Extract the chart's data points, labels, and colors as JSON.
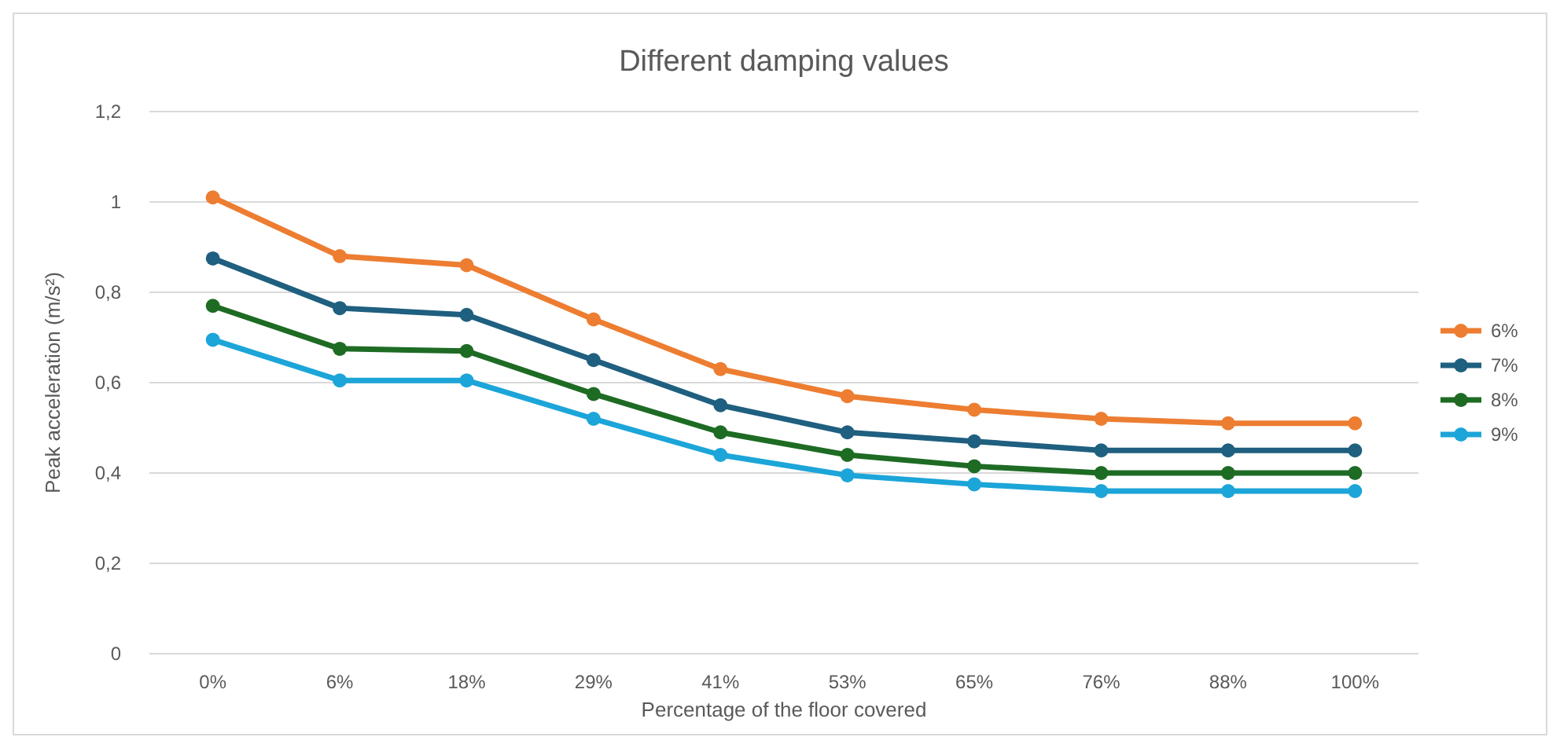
{
  "chart_data": {
    "type": "line",
    "title": "Different damping values",
    "xlabel": "Percentage of the floor covered",
    "ylabel": "Peak acceleration (m/s²)",
    "categories": [
      "0%",
      "6%",
      "18%",
      "29%",
      "41%",
      "53%",
      "65%",
      "76%",
      "88%",
      "100%"
    ],
    "ylim": [
      0,
      1.2
    ],
    "yticks": [
      0,
      {
        "value": 0.2,
        "label": "0,2"
      },
      {
        "value": 0.4,
        "label": "0,4"
      },
      {
        "value": 0.6,
        "label": "0,6"
      },
      {
        "value": 0.8,
        "label": "0,8"
      },
      1,
      {
        "value": 1.2,
        "label": "1,2"
      }
    ],
    "grid": "y",
    "legend": "right",
    "marker": "circle",
    "line_style": "solid",
    "series": [
      {
        "name": "6%",
        "color": "#ed7d31",
        "values": [
          1.01,
          0.88,
          0.86,
          0.74,
          0.63,
          0.57,
          0.54,
          0.52,
          0.51,
          0.51
        ]
      },
      {
        "name": "7%",
        "color": "#1f5f7f",
        "values": [
          0.875,
          0.765,
          0.75,
          0.65,
          0.55,
          0.49,
          0.47,
          0.45,
          0.45,
          0.45
        ]
      },
      {
        "name": "8%",
        "color": "#1e6b24",
        "values": [
          0.77,
          0.675,
          0.67,
          0.575,
          0.49,
          0.44,
          0.415,
          0.4,
          0.4,
          0.4
        ]
      },
      {
        "name": "9%",
        "color": "#1ca5d8",
        "values": [
          0.695,
          0.605,
          0.605,
          0.52,
          0.44,
          0.395,
          0.375,
          0.36,
          0.36,
          0.36
        ]
      }
    ]
  }
}
